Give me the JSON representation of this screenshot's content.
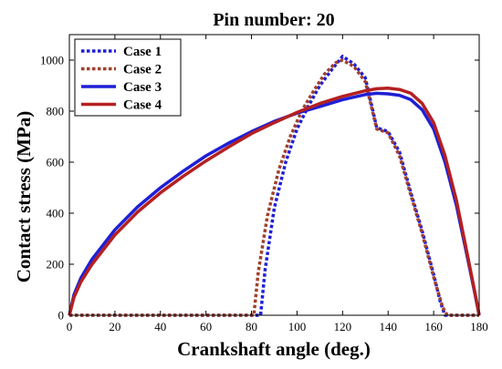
{
  "chart_data": {
    "type": "line",
    "title": "Pin number: 20",
    "xlabel": "Crankshaft angle (deg.)",
    "ylabel": "Contact stress (MPa)",
    "xlim": [
      0,
      180
    ],
    "ylim": [
      0,
      1100
    ],
    "xticks": [
      0,
      20,
      40,
      60,
      80,
      100,
      120,
      140,
      160,
      180
    ],
    "yticks": [
      0,
      200,
      400,
      600,
      800,
      1000
    ],
    "xtick_labels": [
      "0",
      "20",
      "40",
      "60",
      "80",
      "100",
      "120",
      "140",
      "160",
      "180"
    ],
    "ytick_labels": [
      "0",
      "200",
      "400",
      "600",
      "800",
      "1000"
    ],
    "grid": false,
    "legend_position": "top-left",
    "series": [
      {
        "name": "Case 1",
        "color": "#1f1fd6",
        "style": "dotted",
        "x": [
          0,
          84,
          86,
          90,
          95,
          100,
          105,
          110,
          115,
          120,
          125,
          130,
          135,
          140,
          145,
          150,
          155,
          160,
          163,
          165,
          180
        ],
        "y": [
          0,
          0,
          180,
          420,
          600,
          730,
          820,
          900,
          960,
          1015,
          985,
          930,
          735,
          720,
          640,
          480,
          330,
          160,
          50,
          0,
          0
        ]
      },
      {
        "name": "Case 2",
        "color": "#a0402a",
        "style": "dotted",
        "x": [
          0,
          81,
          83,
          87,
          92,
          97,
          102,
          107,
          112,
          117,
          120,
          125,
          130,
          135,
          140,
          145,
          150,
          155,
          160,
          164,
          166,
          180
        ],
        "y": [
          0,
          0,
          170,
          390,
          570,
          700,
          800,
          875,
          945,
          990,
          1000,
          975,
          915,
          730,
          715,
          625,
          470,
          320,
          150,
          30,
          0,
          0
        ]
      },
      {
        "name": "Case 3",
        "color": "#1f1fd6",
        "style": "solid",
        "x": [
          0,
          2,
          5,
          10,
          20,
          30,
          40,
          50,
          60,
          70,
          80,
          90,
          100,
          110,
          120,
          130,
          135,
          140,
          145,
          150,
          155,
          160,
          165,
          170,
          175,
          178,
          180
        ],
        "y": [
          0,
          80,
          145,
          220,
          335,
          425,
          500,
          565,
          625,
          675,
          720,
          760,
          792,
          818,
          845,
          865,
          870,
          868,
          862,
          845,
          805,
          730,
          600,
          430,
          220,
          90,
          0
        ]
      },
      {
        "name": "Case 4",
        "color": "#b52020",
        "style": "solid",
        "x": [
          0,
          2,
          5,
          10,
          20,
          30,
          40,
          50,
          60,
          70,
          80,
          90,
          100,
          110,
          120,
          130,
          135,
          140,
          145,
          150,
          155,
          160,
          165,
          170,
          175,
          178,
          180
        ],
        "y": [
          0,
          70,
          130,
          200,
          315,
          405,
          480,
          545,
          605,
          660,
          712,
          755,
          795,
          830,
          858,
          880,
          888,
          890,
          885,
          870,
          830,
          755,
          625,
          450,
          230,
          95,
          0
        ]
      }
    ]
  }
}
